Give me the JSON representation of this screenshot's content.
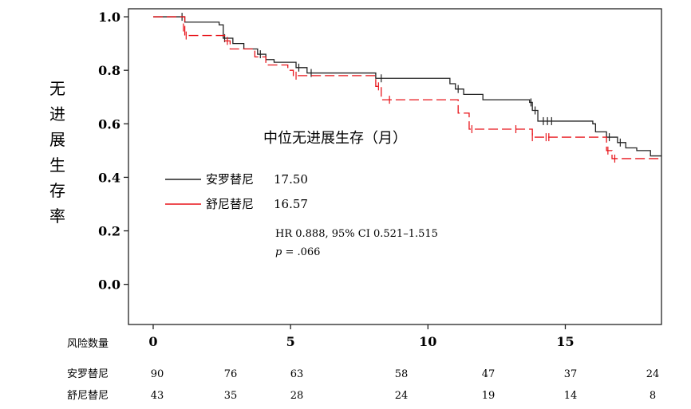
{
  "chart_data": {
    "type": "line",
    "ylabel": "无进展生存率",
    "ylim": [
      -0.15,
      1.03
    ],
    "xlim": [
      -0.9,
      18.5
    ],
    "y_ticks": [
      "1.0",
      "0.8",
      "0.6",
      "0.4",
      "0.2",
      "0.0"
    ],
    "y_tick_values": [
      1.0,
      0.8,
      0.6,
      0.4,
      0.2,
      0.0
    ],
    "x_ticks": [
      "0",
      "5",
      "10",
      "15"
    ],
    "x_tick_values": [
      0,
      5,
      10,
      15
    ],
    "median_title": "中位无进展生存（月）",
    "stats_hr": "HR 0.888, 95% CI 0.521–1.515",
    "stats_p_symbol": "p",
    "stats_p_value": " = .066",
    "series": [
      {
        "name": "安罗替尼",
        "median": "17.50",
        "color": "#222222",
        "dash": "solid",
        "steps": [
          [
            0,
            1.0
          ],
          [
            1.1,
            1.0
          ],
          [
            1.15,
            0.98
          ],
          [
            2.4,
            0.97
          ],
          [
            2.55,
            0.92
          ],
          [
            2.9,
            0.9
          ],
          [
            3.3,
            0.88
          ],
          [
            3.8,
            0.86
          ],
          [
            4.1,
            0.84
          ],
          [
            4.4,
            0.83
          ],
          [
            5.2,
            0.81
          ],
          [
            5.6,
            0.79
          ],
          [
            8.0,
            0.79
          ],
          [
            8.1,
            0.77
          ],
          [
            10.8,
            0.75
          ],
          [
            11.0,
            0.73
          ],
          [
            11.3,
            0.71
          ],
          [
            12.0,
            0.69
          ],
          [
            13.7,
            0.68
          ],
          [
            13.8,
            0.65
          ],
          [
            14.0,
            0.61
          ],
          [
            16.0,
            0.6
          ],
          [
            16.1,
            0.57
          ],
          [
            16.5,
            0.55
          ],
          [
            16.9,
            0.53
          ],
          [
            17.2,
            0.51
          ],
          [
            17.6,
            0.5
          ],
          [
            18.1,
            0.48
          ],
          [
            18.5,
            0.48
          ]
        ],
        "censored": [
          [
            1.05,
            1.0
          ],
          [
            2.6,
            0.92
          ],
          [
            3.9,
            0.86
          ],
          [
            5.3,
            0.81
          ],
          [
            5.75,
            0.79
          ],
          [
            8.3,
            0.77
          ],
          [
            11.1,
            0.73
          ],
          [
            13.75,
            0.68
          ],
          [
            13.9,
            0.65
          ],
          [
            14.2,
            0.61
          ],
          [
            14.35,
            0.61
          ],
          [
            14.5,
            0.61
          ],
          [
            16.6,
            0.55
          ],
          [
            17.0,
            0.53
          ]
        ]
      },
      {
        "name": "舒尼替尼",
        "median": "16.57",
        "color": "#e8141a",
        "dash": "dashed",
        "steps": [
          [
            0,
            1.0
          ],
          [
            1.05,
            1.0
          ],
          [
            1.15,
            0.93
          ],
          [
            2.6,
            0.91
          ],
          [
            2.8,
            0.88
          ],
          [
            3.7,
            0.85
          ],
          [
            4.1,
            0.82
          ],
          [
            4.9,
            0.8
          ],
          [
            5.1,
            0.78
          ],
          [
            8.0,
            0.78
          ],
          [
            8.1,
            0.74
          ],
          [
            8.3,
            0.69
          ],
          [
            10.9,
            0.69
          ],
          [
            11.1,
            0.64
          ],
          [
            11.5,
            0.58
          ],
          [
            13.7,
            0.58
          ],
          [
            13.8,
            0.55
          ],
          [
            14.2,
            0.55
          ],
          [
            16.5,
            0.5
          ],
          [
            16.7,
            0.47
          ],
          [
            18.5,
            0.47
          ]
        ],
        "censored": [
          [
            1.1,
            0.96
          ],
          [
            1.2,
            0.93
          ],
          [
            2.7,
            0.91
          ],
          [
            5.2,
            0.78
          ],
          [
            8.2,
            0.74
          ],
          [
            8.6,
            0.69
          ],
          [
            11.6,
            0.58
          ],
          [
            13.2,
            0.58
          ],
          [
            13.8,
            0.55
          ],
          [
            14.3,
            0.55
          ],
          [
            14.4,
            0.55
          ],
          [
            16.55,
            0.5
          ],
          [
            16.8,
            0.47
          ]
        ]
      }
    ],
    "risk_table": {
      "title": "风险数量",
      "x": [
        0,
        2.5,
        5,
        7.5,
        10,
        12.5,
        15,
        18.5
      ],
      "rows": [
        {
          "label": "安罗替尼",
          "values": [
            "90",
            "76",
            "63",
            "58",
            "47",
            "37",
            "24"
          ]
        },
        {
          "label": "舒尼替尼",
          "values": [
            "43",
            "35",
            "28",
            "24",
            "19",
            "14",
            "8"
          ]
        }
      ]
    }
  }
}
